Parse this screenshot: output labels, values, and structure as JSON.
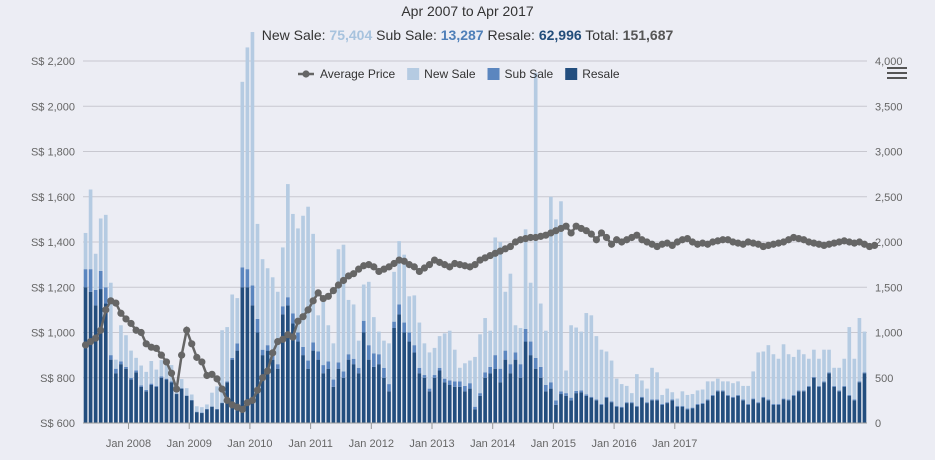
{
  "header": {
    "title": "Apr 2007 to Apr 2017",
    "new_sale_label": "New Sale:",
    "new_sale_value": "75,404",
    "sub_sale_label": "Sub Sale:",
    "sub_sale_value": "13,287",
    "resale_label": "Resale:",
    "resale_value": "62,996",
    "total_label": "Total:",
    "total_value": "151,687"
  },
  "colors": {
    "new_sale": "#b5cbe2",
    "sub_sale": "#5b86bf",
    "resale": "#234e7e",
    "average_price": "#666666"
  },
  "icons": {
    "menu": "hamburger-menu-icon"
  },
  "chart_data": {
    "type": "bar",
    "stacked": true,
    "x_start": "2007-04",
    "x_end": "2017-04",
    "x_ticks": [
      "Jan 2008",
      "Jan 2009",
      "Jan 2010",
      "Jan 2011",
      "Jan 2012",
      "Jan 2013",
      "Jan 2014",
      "Jan 2015",
      "Jan 2016",
      "Jan 2017"
    ],
    "y_left": {
      "min": 600,
      "max": 2200,
      "ticks": [
        "S$ 600",
        "S$ 800",
        "S$ 1,000",
        "S$ 1,200",
        "S$ 1,400",
        "S$ 1,600",
        "S$ 1,800",
        "S$ 2,000",
        "S$ 2,200"
      ]
    },
    "y_right": {
      "min": 0,
      "max": 4000,
      "ticks": [
        "0",
        "500",
        "1,000",
        "1,500",
        "2,000",
        "2,500",
        "3,000",
        "3,500",
        "4,000"
      ]
    },
    "legend_position": "top-center",
    "grid": true,
    "series": [
      {
        "name": "Resale",
        "axis": "right",
        "values": [
          1500,
          1450,
          1300,
          1480,
          1320,
          700,
          550,
          650,
          600,
          480,
          560,
          400,
          350,
          420,
          400,
          500,
          480,
          450,
          320,
          380,
          300,
          250,
          120,
          110,
          150,
          180,
          150,
          220,
          450,
          700,
          800,
          1500,
          1500,
          1300,
          1000,
          750,
          800,
          700,
          600,
          1200,
          1300,
          1100,
          900,
          750,
          600,
          800,
          700,
          550,
          600,
          400,
          600,
          500,
          700,
          650,
          550,
          1000,
          700,
          620,
          650,
          500,
          350,
          1050,
          1200,
          1000,
          900,
          780,
          550,
          500,
          350,
          500,
          580,
          450,
          420,
          400,
          400,
          350,
          380,
          150,
          300,
          500,
          550,
          600,
          450,
          700,
          550,
          700,
          500,
          900,
          750,
          600,
          500,
          350,
          380,
          200,
          320,
          300,
          250,
          330,
          340,
          300,
          280,
          250,
          200,
          280,
          230,
          180,
          170,
          220,
          220,
          180,
          280,
          220,
          250,
          250,
          200,
          220,
          250,
          180,
          180,
          150,
          160,
          200,
          210,
          250,
          300,
          350,
          350,
          300,
          280,
          300,
          250,
          200,
          260,
          220,
          280,
          250,
          200,
          200,
          260,
          250,
          300,
          350,
          350,
          400,
          500,
          400,
          450,
          550,
          400,
          350,
          400,
          300,
          250,
          450,
          550
        ]
      },
      {
        "name": "Sub Sale",
        "axis": "right",
        "values": [
          200,
          250,
          170,
          200,
          180,
          50,
          50,
          30,
          20,
          20,
          20,
          15,
          15,
          15,
          10,
          15,
          10,
          10,
          5,
          5,
          5,
          5,
          5,
          5,
          5,
          5,
          5,
          5,
          10,
          20,
          80,
          220,
          200,
          220,
          150,
          60,
          60,
          60,
          50,
          90,
          90,
          110,
          100,
          90,
          90,
          90,
          90,
          90,
          80,
          80,
          70,
          70,
          60,
          60,
          60,
          130,
          160,
          150,
          110,
          110,
          80,
          70,
          110,
          110,
          100,
          80,
          60,
          30,
          30,
          30,
          30,
          40,
          50,
          60,
          60,
          60,
          60,
          30,
          30,
          60,
          70,
          150,
          150,
          100,
          100,
          80,
          150,
          140,
          150,
          120,
          120,
          70,
          70,
          50,
          30,
          30,
          30,
          25,
          20,
          15,
          10,
          10,
          10,
          10,
          10,
          10,
          10,
          10,
          10,
          10,
          10,
          10,
          10,
          10,
          10,
          10,
          10,
          10,
          10,
          10,
          10,
          10,
          10,
          10,
          10,
          10,
          10,
          10,
          10,
          10,
          10,
          10,
          10,
          10,
          10,
          10,
          10,
          10,
          10,
          10,
          10,
          10,
          10,
          10,
          10,
          10,
          10,
          10,
          10,
          10,
          10,
          10,
          10,
          10,
          10,
          10,
          10,
          10
        ]
      },
      {
        "name": "New Sale",
        "axis": "right",
        "values": [
          400,
          880,
          400,
          580,
          800,
          800,
          100,
          400,
          350,
          300,
          140,
          220,
          200,
          250,
          180,
          180,
          220,
          180,
          120,
          100,
          80,
          60,
          60,
          60,
          50,
          150,
          250,
          800,
          600,
          700,
          500,
          2050,
          2450,
          2800,
          1050,
          1000,
          850,
          850,
          800,
          650,
          1250,
          1100,
          1150,
          1450,
          1700,
          1200,
          400,
          700,
          400,
          400,
          1250,
          1400,
          600,
          600,
          300,
          400,
          700,
          400,
          250,
          300,
          450,
          550,
          700,
          750,
          400,
          550,
          500,
          350,
          400,
          300,
          350,
          500,
          550,
          350,
          150,
          250,
          250,
          550,
          650,
          600,
          400,
          1300,
          1400,
          650,
          1000,
          300,
          400,
          1100,
          650,
          3150,
          700,
          600,
          2050,
          2000,
          2100,
          250,
          800,
          700,
          650,
          900,
          900,
          700,
          600,
          500,
          450,
          300,
          250,
          180,
          100,
          350,
          180,
          150,
          350,
          300,
          100,
          150,
          80,
          80,
          160,
          150,
          150,
          150,
          150,
          200,
          150,
          130,
          100,
          150,
          150,
          150,
          150,
          200,
          300,
          550,
          500,
          600,
          550,
          500,
          600,
          500,
          420,
          450,
          400,
          300,
          300,
          300,
          350,
          250,
          200,
          250,
          300,
          750,
          450,
          700,
          450,
          350,
          400,
          450,
          300,
          250,
          350,
          450,
          100,
          400,
          400
        ]
      },
      {
        "name": "Average Price",
        "axis": "left",
        "type": "line",
        "values": [
          945,
          960,
          975,
          1010,
          1100,
          1140,
          1130,
          1085,
          1060,
          1040,
          1010,
          1000,
          950,
          935,
          930,
          900,
          870,
          820,
          750,
          900,
          1010,
          950,
          890,
          870,
          810,
          815,
          795,
          750,
          700,
          680,
          670,
          660,
          690,
          700,
          745,
          800,
          830,
          910,
          960,
          970,
          990,
          980,
          1050,
          1070,
          1100,
          1140,
          1175,
          1150,
          1160,
          1185,
          1210,
          1230,
          1250,
          1260,
          1280,
          1295,
          1300,
          1290,
          1270,
          1280,
          1290,
          1305,
          1320,
          1315,
          1300,
          1290,
          1270,
          1285,
          1300,
          1320,
          1310,
          1300,
          1290,
          1305,
          1300,
          1295,
          1290,
          1300,
          1320,
          1330,
          1340,
          1350,
          1360,
          1370,
          1380,
          1400,
          1410,
          1415,
          1420,
          1420,
          1425,
          1430,
          1440,
          1450,
          1460,
          1470,
          1440,
          1470,
          1460,
          1450,
          1435,
          1410,
          1440,
          1420,
          1390,
          1410,
          1400,
          1410,
          1420,
          1430,
          1410,
          1400,
          1390,
          1380,
          1390,
          1395,
          1385,
          1400,
          1410,
          1415,
          1400,
          1390,
          1395,
          1390,
          1400,
          1405,
          1410,
          1410,
          1400,
          1395,
          1390,
          1400,
          1395,
          1390,
          1380,
          1385,
          1390,
          1395,
          1400,
          1410,
          1420,
          1415,
          1410,
          1400,
          1395,
          1390,
          1385,
          1390,
          1395,
          1400,
          1405,
          1400,
          1395,
          1400,
          1390,
          1380,
          1385
        ]
      }
    ]
  }
}
